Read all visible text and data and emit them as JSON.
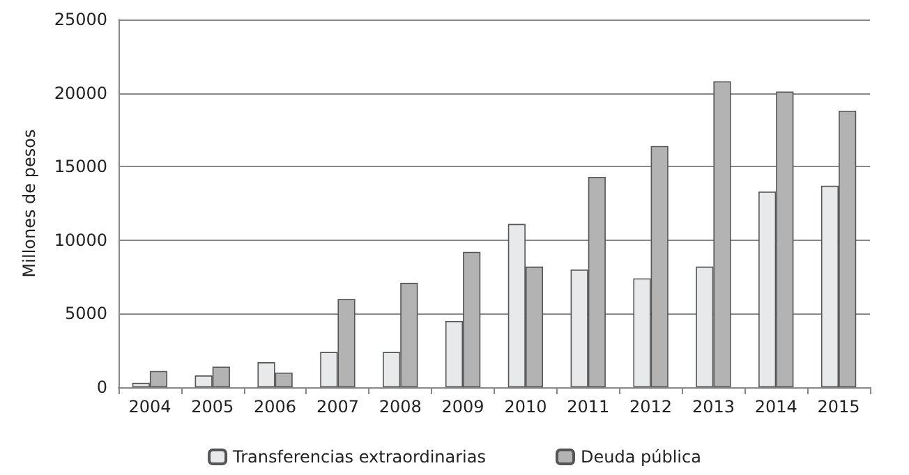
{
  "chart_data": {
    "type": "bar",
    "ylabel": "Millones de pesos",
    "categories": [
      "2004",
      "2005",
      "2006",
      "2007",
      "2008",
      "2009",
      "2010",
      "2011",
      "2012",
      "2013",
      "2014",
      "2015"
    ],
    "series": [
      {
        "name": "Transferencias extraordinarias",
        "color": "#e8e9eb",
        "values": [
          300,
          800,
          1700,
          2400,
          2400,
          4500,
          11100,
          8000,
          7400,
          8200,
          13300,
          13700
        ]
      },
      {
        "name": "Deuda pública",
        "color": "#b3b3b3",
        "values": [
          1100,
          1400,
          1000,
          6000,
          7100,
          9200,
          8200,
          14300,
          16400,
          20800,
          20100,
          18800
        ]
      }
    ],
    "ylim": [
      0,
      25000
    ],
    "yticks": [
      0,
      5000,
      10000,
      15000,
      20000,
      25000
    ],
    "grid": "y",
    "legend": "bottom"
  }
}
